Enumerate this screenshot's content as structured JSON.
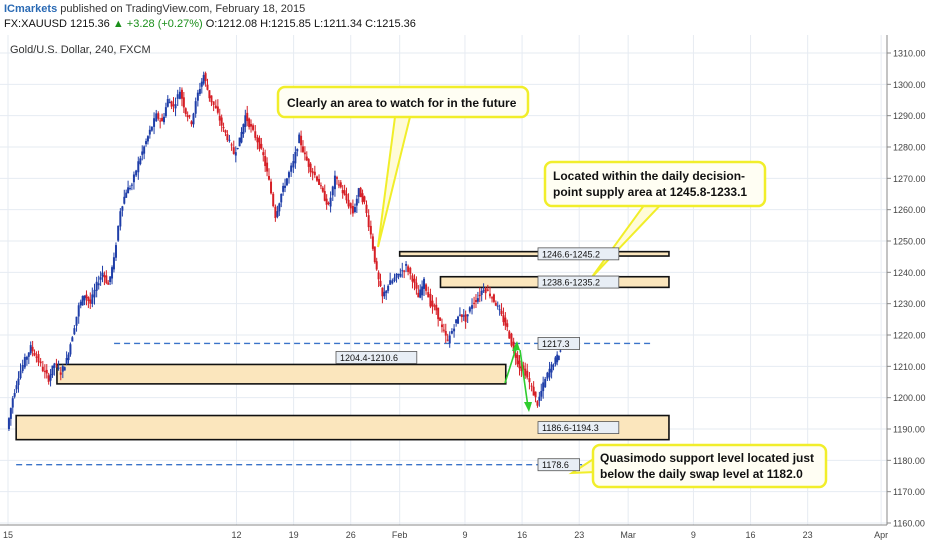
{
  "header": {
    "brand": "ICmarkets",
    "published": "published on TradingView.com, February 18, 2015",
    "symbol": "FX:XAUUSD",
    "last": "1215.36",
    "change": "▲ +3.28 (+0.27%)",
    "ohlc": "O:1212.08 H:1215.85 L:1211.34 C:1215.36"
  },
  "chart_data": {
    "type": "candlestick",
    "title": "Gold/U.S. Dollar, 240, FXCM",
    "ylim": [
      1160,
      1315
    ],
    "yticks": [
      "1160.00",
      "1170.00",
      "1180.00",
      "1190.00",
      "1200.00",
      "1210.00",
      "1220.00",
      "1230.00",
      "1240.00",
      "1250.00",
      "1260.00",
      "1270.00",
      "1280.00",
      "1290.00",
      "1300.00",
      "1310.00"
    ],
    "xticks": [
      {
        "label": "15",
        "day": 0
      },
      {
        "label": "12",
        "day": 28
      },
      {
        "label": "19",
        "day": 35
      },
      {
        "label": "26",
        "day": 42
      },
      {
        "label": "Feb",
        "day": 48
      },
      {
        "label": "9",
        "day": 56
      },
      {
        "label": "16",
        "day": 63
      },
      {
        "label": "23",
        "day": 70
      },
      {
        "label": "Mar",
        "day": 76
      },
      {
        "label": "9",
        "day": 84
      },
      {
        "label": "16",
        "day": 91
      },
      {
        "label": "23",
        "day": 98
      },
      {
        "label": "Apr",
        "day": 107
      }
    ],
    "price_path": [
      [
        0,
        1190
      ],
      [
        0.7,
        1200
      ],
      [
        1.4,
        1207
      ],
      [
        2.2,
        1212
      ],
      [
        2.9,
        1216
      ],
      [
        3.6,
        1213
      ],
      [
        4.4,
        1209
      ],
      [
        5.1,
        1206
      ],
      [
        5.8,
        1211
      ],
      [
        6.6,
        1208
      ],
      [
        7.3,
        1212
      ],
      [
        8.0,
        1220
      ],
      [
        8.8,
        1229
      ],
      [
        9.5,
        1233
      ],
      [
        10.2,
        1230
      ],
      [
        11,
        1236
      ],
      [
        11.7,
        1240
      ],
      [
        12.4,
        1236
      ],
      [
        13.1,
        1244
      ],
      [
        13.9,
        1260
      ],
      [
        14.6,
        1266
      ],
      [
        15.3,
        1268
      ],
      [
        16.1,
        1275
      ],
      [
        16.8,
        1280
      ],
      [
        17.5,
        1285
      ],
      [
        18.3,
        1290
      ],
      [
        19,
        1288
      ],
      [
        19.7,
        1295
      ],
      [
        20.4,
        1293
      ],
      [
        21.2,
        1298
      ],
      [
        21.9,
        1291
      ],
      [
        22.6,
        1288
      ],
      [
        23.4,
        1297
      ],
      [
        24.1,
        1303
      ],
      [
        24.8,
        1296
      ],
      [
        25.6,
        1292
      ],
      [
        26.3,
        1287
      ],
      [
        27,
        1283
      ],
      [
        27.8,
        1278
      ],
      [
        28.5,
        1282
      ],
      [
        29.2,
        1290
      ],
      [
        29.9,
        1286
      ],
      [
        30.7,
        1282
      ],
      [
        31.4,
        1277
      ],
      [
        32.1,
        1269
      ],
      [
        32.9,
        1258
      ],
      [
        33.6,
        1265
      ],
      [
        34.3,
        1270
      ],
      [
        35.1,
        1275
      ],
      [
        35.8,
        1283
      ],
      [
        36.5,
        1277
      ],
      [
        37.2,
        1273
      ],
      [
        38,
        1270
      ],
      [
        38.7,
        1265
      ],
      [
        39.4,
        1261
      ],
      [
        40.2,
        1270
      ],
      [
        40.9,
        1267
      ],
      [
        41.6,
        1263
      ],
      [
        42.4,
        1259
      ],
      [
        43.1,
        1266
      ],
      [
        43.8,
        1262
      ],
      [
        44.6,
        1252
      ],
      [
        45.3,
        1240
      ],
      [
        46,
        1232
      ],
      [
        46.7,
        1236
      ],
      [
        47.5,
        1238
      ],
      [
        48.2,
        1240
      ],
      [
        48.9,
        1242
      ],
      [
        49.7,
        1238
      ],
      [
        50.4,
        1232
      ],
      [
        51.1,
        1237
      ],
      [
        51.9,
        1230
      ],
      [
        52.6,
        1228
      ],
      [
        53.3,
        1222
      ],
      [
        54,
        1218
      ],
      [
        54.8,
        1223
      ],
      [
        55.5,
        1227
      ],
      [
        56.2,
        1225
      ],
      [
        57,
        1230
      ],
      [
        57.7,
        1232
      ],
      [
        58.4,
        1235
      ],
      [
        59.2,
        1233
      ],
      [
        59.9,
        1230
      ],
      [
        60.6,
        1226
      ],
      [
        61.3,
        1222
      ],
      [
        62.1,
        1215
      ],
      [
        62.8,
        1210
      ],
      [
        63.5,
        1208
      ],
      [
        64.3,
        1203
      ],
      [
        65,
        1198
      ],
      [
        65.7,
        1204
      ],
      [
        66.5,
        1209
      ],
      [
        67.2,
        1212
      ],
      [
        67.8,
        1215
      ]
    ],
    "zones": [
      {
        "label": "1246.6-1245.2",
        "top": 1246.6,
        "bottom": 1245.2,
        "day_start": 48,
        "day_end": 81
      },
      {
        "label": "1238.6-1235.2",
        "top": 1238.6,
        "bottom": 1235.2,
        "day_start": 53,
        "day_end": 81
      },
      {
        "label": "1204.4-1210.6",
        "top": 1210.6,
        "bottom": 1204.4,
        "day_start": 6,
        "day_end": 61
      },
      {
        "label": "1186.6-1194.3",
        "top": 1194.3,
        "bottom": 1186.6,
        "day_start": 1,
        "day_end": 81
      }
    ],
    "levels": [
      {
        "label": "1217.3",
        "price": 1217.3,
        "day_start": 13,
        "day_end": 79
      },
      {
        "label": "1178.6",
        "price": 1178.6,
        "day_start": 1,
        "day_end": 79
      }
    ],
    "annotations": [
      "Clearly an area to watch for in the future",
      "Located within the daily decision-",
      "point supply area at 1245.8-1233.1",
      "Quasimodo support level located just",
      "below the daily swap level at 1182.0"
    ],
    "colors": {
      "up": "#1f3ea8",
      "down": "#d61f26",
      "zone": "#fbe6bd",
      "zone_border": "#111111",
      "level": "#3a73c9",
      "callout_border": "#f1ee2a",
      "arrow": "#2ecc2e"
    }
  }
}
